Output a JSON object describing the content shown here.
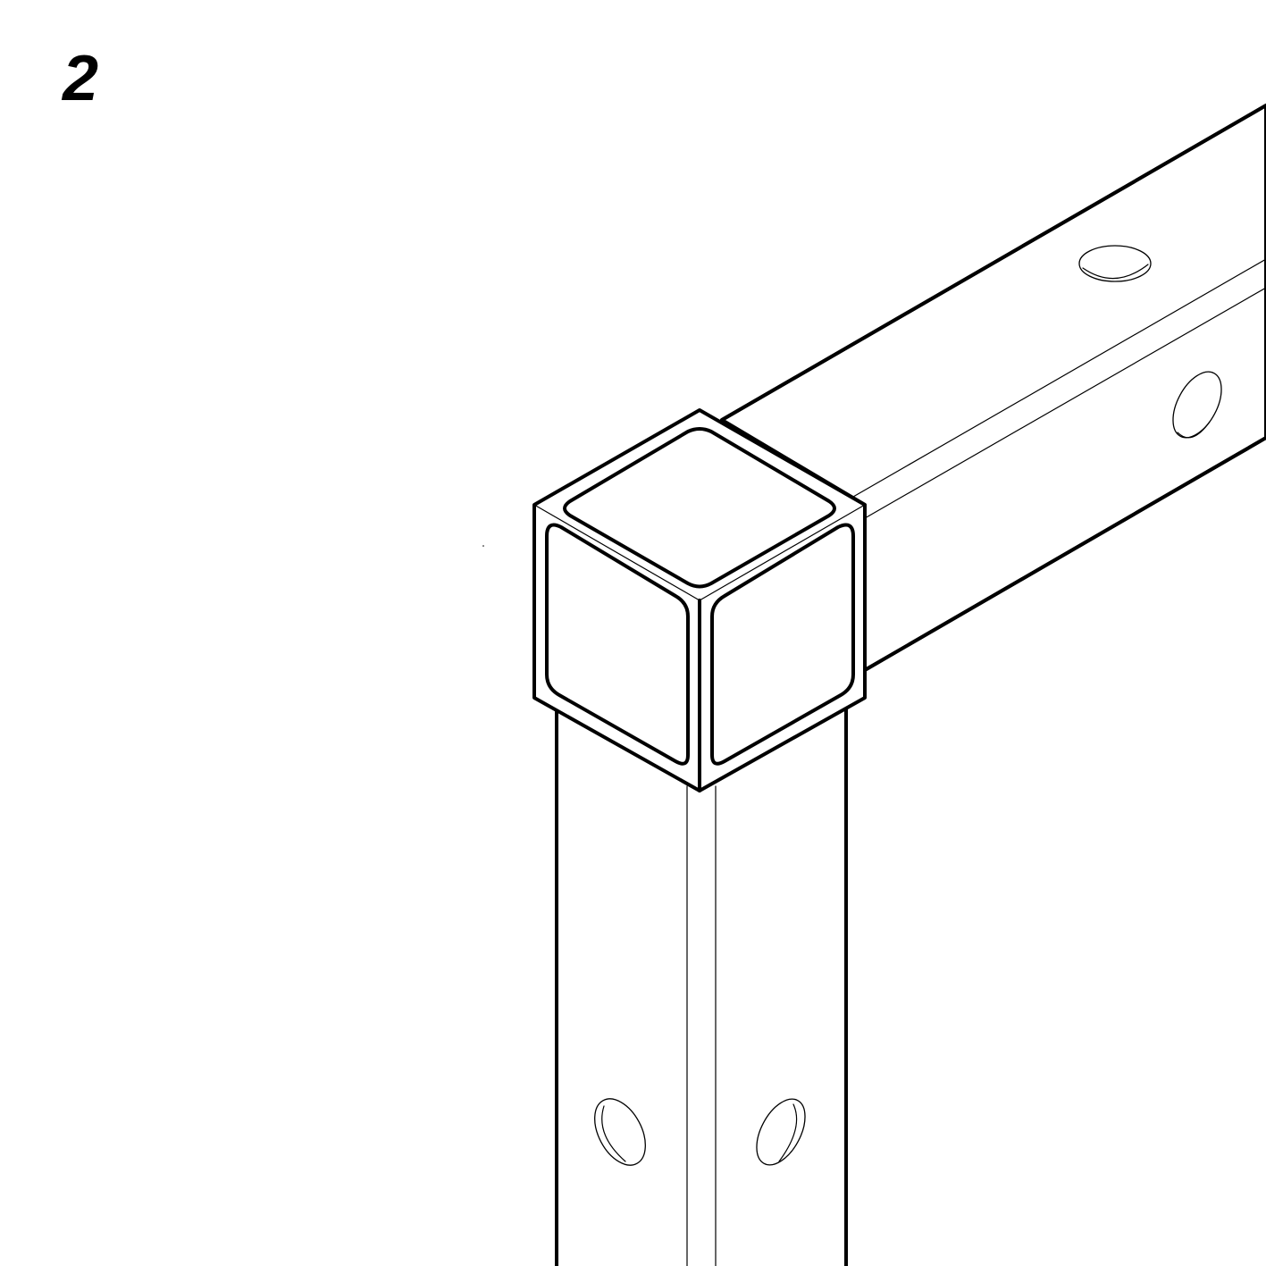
{
  "step": {
    "number": "2"
  },
  "illustration": {
    "subject": "corner-cap-on-frame-tubes",
    "line_color": "#000000",
    "background_color": "#ffffff"
  }
}
